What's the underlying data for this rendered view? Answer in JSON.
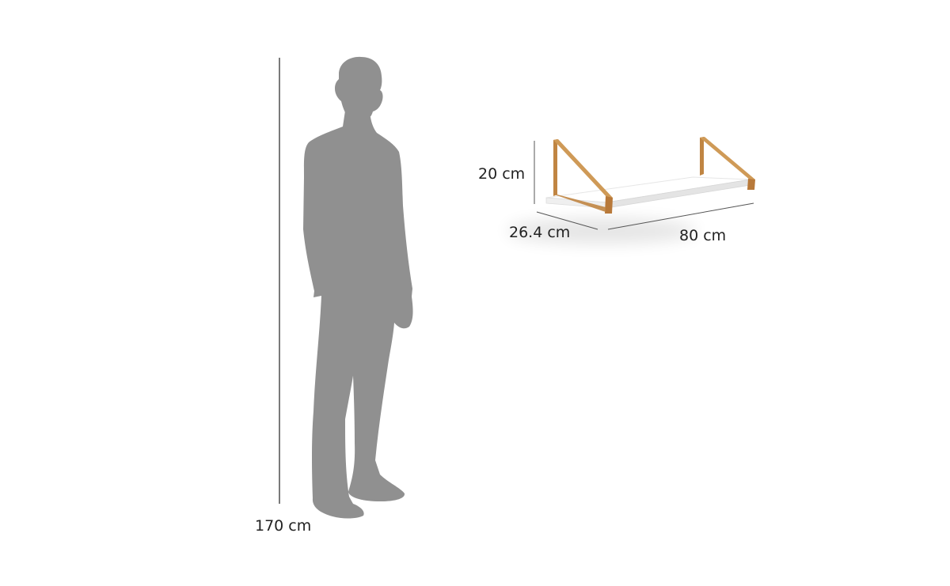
{
  "dimensions": {
    "person_height": "170 cm",
    "shelf_height": "20 cm",
    "shelf_depth": "26.4 cm",
    "shelf_width": "80 cm"
  },
  "colors": {
    "silhouette": "#909090",
    "dimension_line": "#333333",
    "label": "#222222",
    "shelf_board": "#ffffff",
    "shelf_edge": "#e2e2e2",
    "bracket_wood": "#c8914e",
    "bracket_wood_dark": "#a66f33"
  }
}
